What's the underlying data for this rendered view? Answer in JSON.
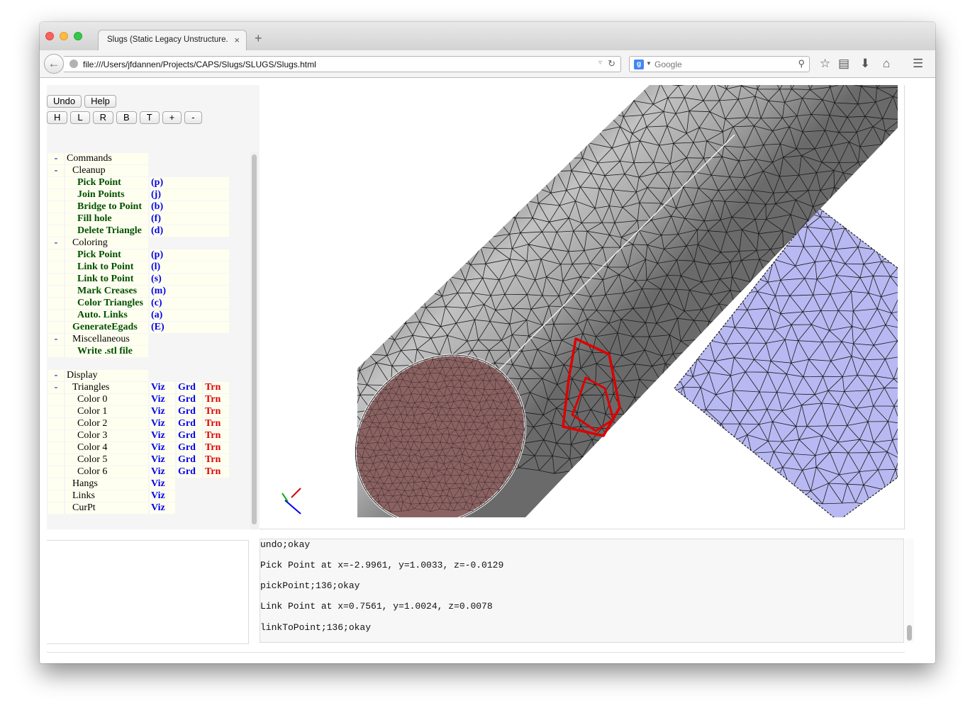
{
  "browser": {
    "tab_title": "Slugs (Static Legacy Unstructure...",
    "tab_close": "×",
    "new_tab": "+",
    "url": "file:///Users/jfdannen/Projects/CAPS/Slugs/SLUGS/Slugs.html",
    "search_engine": "g",
    "search_placeholder": "Google"
  },
  "buttons": {
    "undo": "Undo",
    "help": "Help",
    "views": [
      "H",
      "L",
      "R",
      "B",
      "T",
      "+",
      "-"
    ]
  },
  "commands": {
    "toggle": "-",
    "label": "Commands",
    "cleanup": {
      "toggle": "-",
      "label": "Cleanup",
      "items": [
        {
          "label": "Pick Point",
          "key": "(p)"
        },
        {
          "label": "Join Points",
          "key": "(j)"
        },
        {
          "label": "Bridge to Point",
          "key": "(b)"
        },
        {
          "label": "Fill hole",
          "key": "(f)"
        },
        {
          "label": "Delete Triangle",
          "key": "(d)"
        }
      ]
    },
    "coloring": {
      "toggle": "-",
      "label": "Coloring",
      "items": [
        {
          "label": "Pick Point",
          "key": "(p)"
        },
        {
          "label": "Link to Point",
          "key": "(l)"
        },
        {
          "label": "Link to Point",
          "key": "(s)"
        },
        {
          "label": "Mark Creases",
          "key": "(m)"
        },
        {
          "label": "Color Triangles",
          "key": "(c)"
        },
        {
          "label": "Auto. Links",
          "key": "(a)"
        }
      ]
    },
    "generate": {
      "label": "GenerateEgads",
      "key": "(E)"
    },
    "misc": {
      "toggle": "-",
      "label": "Miscellaneous",
      "items": [
        {
          "label": "Write .stl file"
        }
      ]
    }
  },
  "display": {
    "toggle": "-",
    "label": "Display",
    "viz": "Viz",
    "grd": "Grd",
    "trn": "Trn",
    "triangles": {
      "toggle": "-",
      "label": "Triangles"
    },
    "colors": [
      "Color 0",
      "Color 1",
      "Color 2",
      "Color 3",
      "Color 4",
      "Color 5",
      "Color 6"
    ],
    "others": [
      "Hangs",
      "Links",
      "CurPt"
    ]
  },
  "messages": [
    "undo;okay",
    "Pick Point at x=-2.9961, y=1.0033, z=-0.0129",
    "pickPoint;136;okay",
    "Link Point at x=0.7561, y=1.0024, z=0.0078",
    "linkToPoint;136;okay"
  ],
  "icons": [
    "back-arrow-icon",
    "globe-icon",
    "dropdown-icon",
    "reload-icon",
    "search-icon",
    "star-icon",
    "reading-list-icon",
    "download-icon",
    "home-icon",
    "menu-icon",
    "axes-icon"
  ],
  "colors": {
    "cylinder": "#9a9a9a",
    "cap": "#8a6262",
    "plate": "#b8b8f2",
    "highlight": "#dd0000"
  }
}
